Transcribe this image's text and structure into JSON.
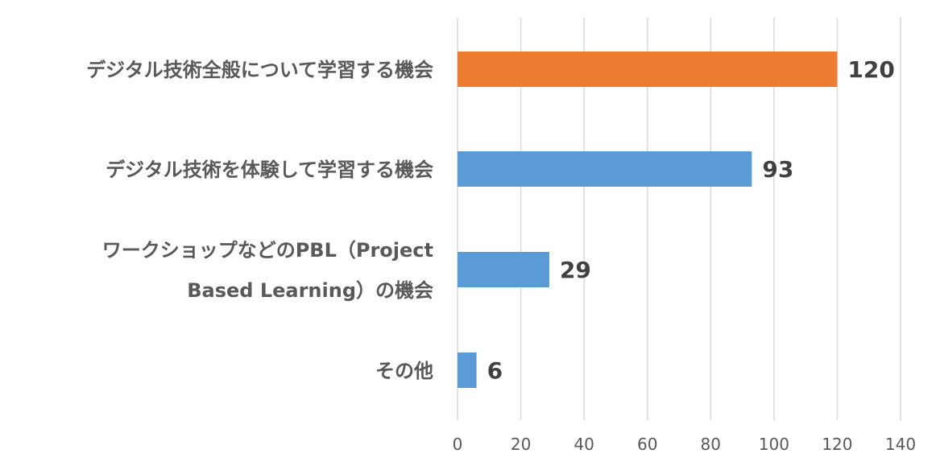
{
  "chart_data": {
    "type": "bar",
    "orientation": "horizontal",
    "categories": [
      [
        "デジタル技術全般について学習する機会"
      ],
      [
        "デジタル技術を体験して学習する機会"
      ],
      [
        "ワークショップなどのPBL（Project",
        "Based Learning）の機会"
      ],
      [
        "その他"
      ]
    ],
    "values": [
      120,
      93,
      29,
      6
    ],
    "bar_colors": [
      "#ed7d31",
      "#5b9bd5",
      "#5b9bd5",
      "#5b9bd5"
    ],
    "data_labels": [
      "120",
      "93",
      "29",
      "6"
    ],
    "xlim": [
      0,
      140
    ],
    "x_ticks": [
      0,
      20,
      40,
      60,
      80,
      100,
      120,
      140
    ],
    "x_tick_labels": [
      "0",
      "20",
      "40",
      "60",
      "80",
      "100",
      "120",
      "140"
    ],
    "grid": "vertical",
    "legend": "none",
    "title": "",
    "xlabel": "",
    "ylabel": ""
  }
}
